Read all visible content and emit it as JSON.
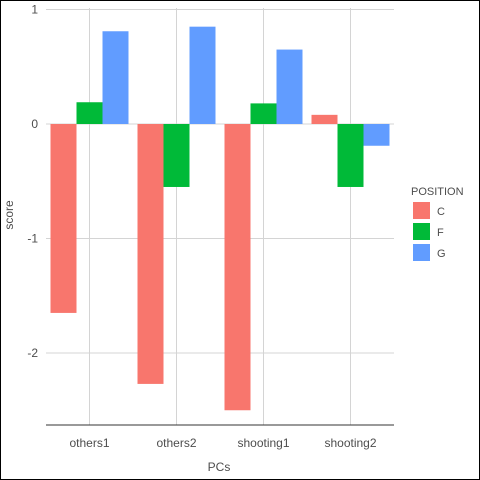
{
  "chart_data": {
    "type": "bar",
    "title": "",
    "xlabel": "PCs",
    "ylabel": "score",
    "categories": [
      "others1",
      "others2",
      "shooting1",
      "shooting2"
    ],
    "series": [
      {
        "name": "C",
        "color": "#F8766D",
        "values": [
          -1.65,
          -2.27,
          -2.5,
          0.08
        ]
      },
      {
        "name": "F",
        "color": "#00BA38",
        "values": [
          0.19,
          -0.55,
          0.18,
          -0.55
        ]
      },
      {
        "name": "G",
        "color": "#619CFF",
        "values": [
          0.81,
          0.85,
          0.65,
          -0.19
        ]
      }
    ],
    "ylim": [
      -2.65,
      1.0
    ],
    "yticks": [
      -2,
      -1,
      0,
      1
    ],
    "ytick_labels": [
      "-2",
      "-1",
      "0",
      "1"
    ],
    "grid": true,
    "legend": {
      "title": "POSITION",
      "placement": "right"
    }
  }
}
